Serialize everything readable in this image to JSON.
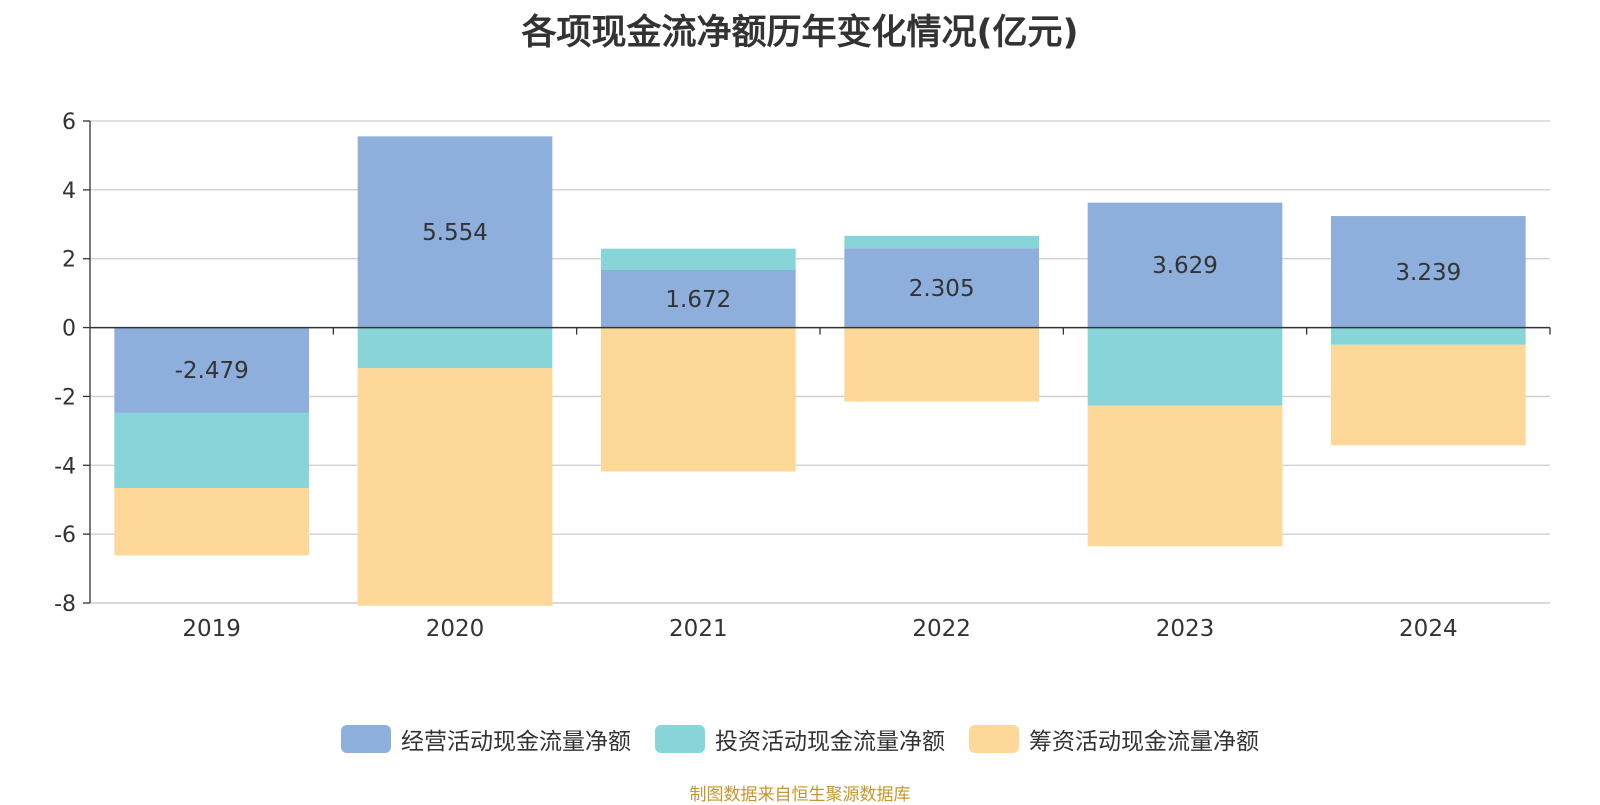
{
  "title": "各项现金流净额历年变化情况(亿元)",
  "source_note": "制图数据来自恒生聚源数据库",
  "colors": {
    "operating": "#8eaedb",
    "investing": "#87d5d8",
    "financing": "#fed898",
    "axis": "#333333",
    "grid": "#cccccc",
    "text": "#333333"
  },
  "chart_data": {
    "type": "bar",
    "stacked": true,
    "categories": [
      "2019",
      "2020",
      "2021",
      "2022",
      "2023",
      "2024"
    ],
    "series": [
      {
        "name": "经营活动现金流量净额",
        "values": [
          -2.479,
          5.554,
          1.672,
          2.305,
          3.629,
          3.239
        ],
        "labels": [
          "-2.479",
          "5.554",
          "1.672",
          "2.305",
          "3.629",
          "3.239"
        ]
      },
      {
        "name": "投资活动现金流量净额",
        "values": [
          -2.18,
          -1.18,
          0.62,
          0.36,
          -2.27,
          -0.5
        ]
      },
      {
        "name": "筹资活动现金流量净额",
        "values": [
          -1.96,
          -6.9,
          -4.18,
          -2.15,
          -4.08,
          -2.92
        ]
      }
    ],
    "yticks": [
      "-8",
      "-6",
      "-4",
      "-2",
      "0",
      "2",
      "4",
      "6"
    ],
    "ylim": [
      -8,
      6
    ],
    "grid": true,
    "legend_position": "bottom"
  }
}
